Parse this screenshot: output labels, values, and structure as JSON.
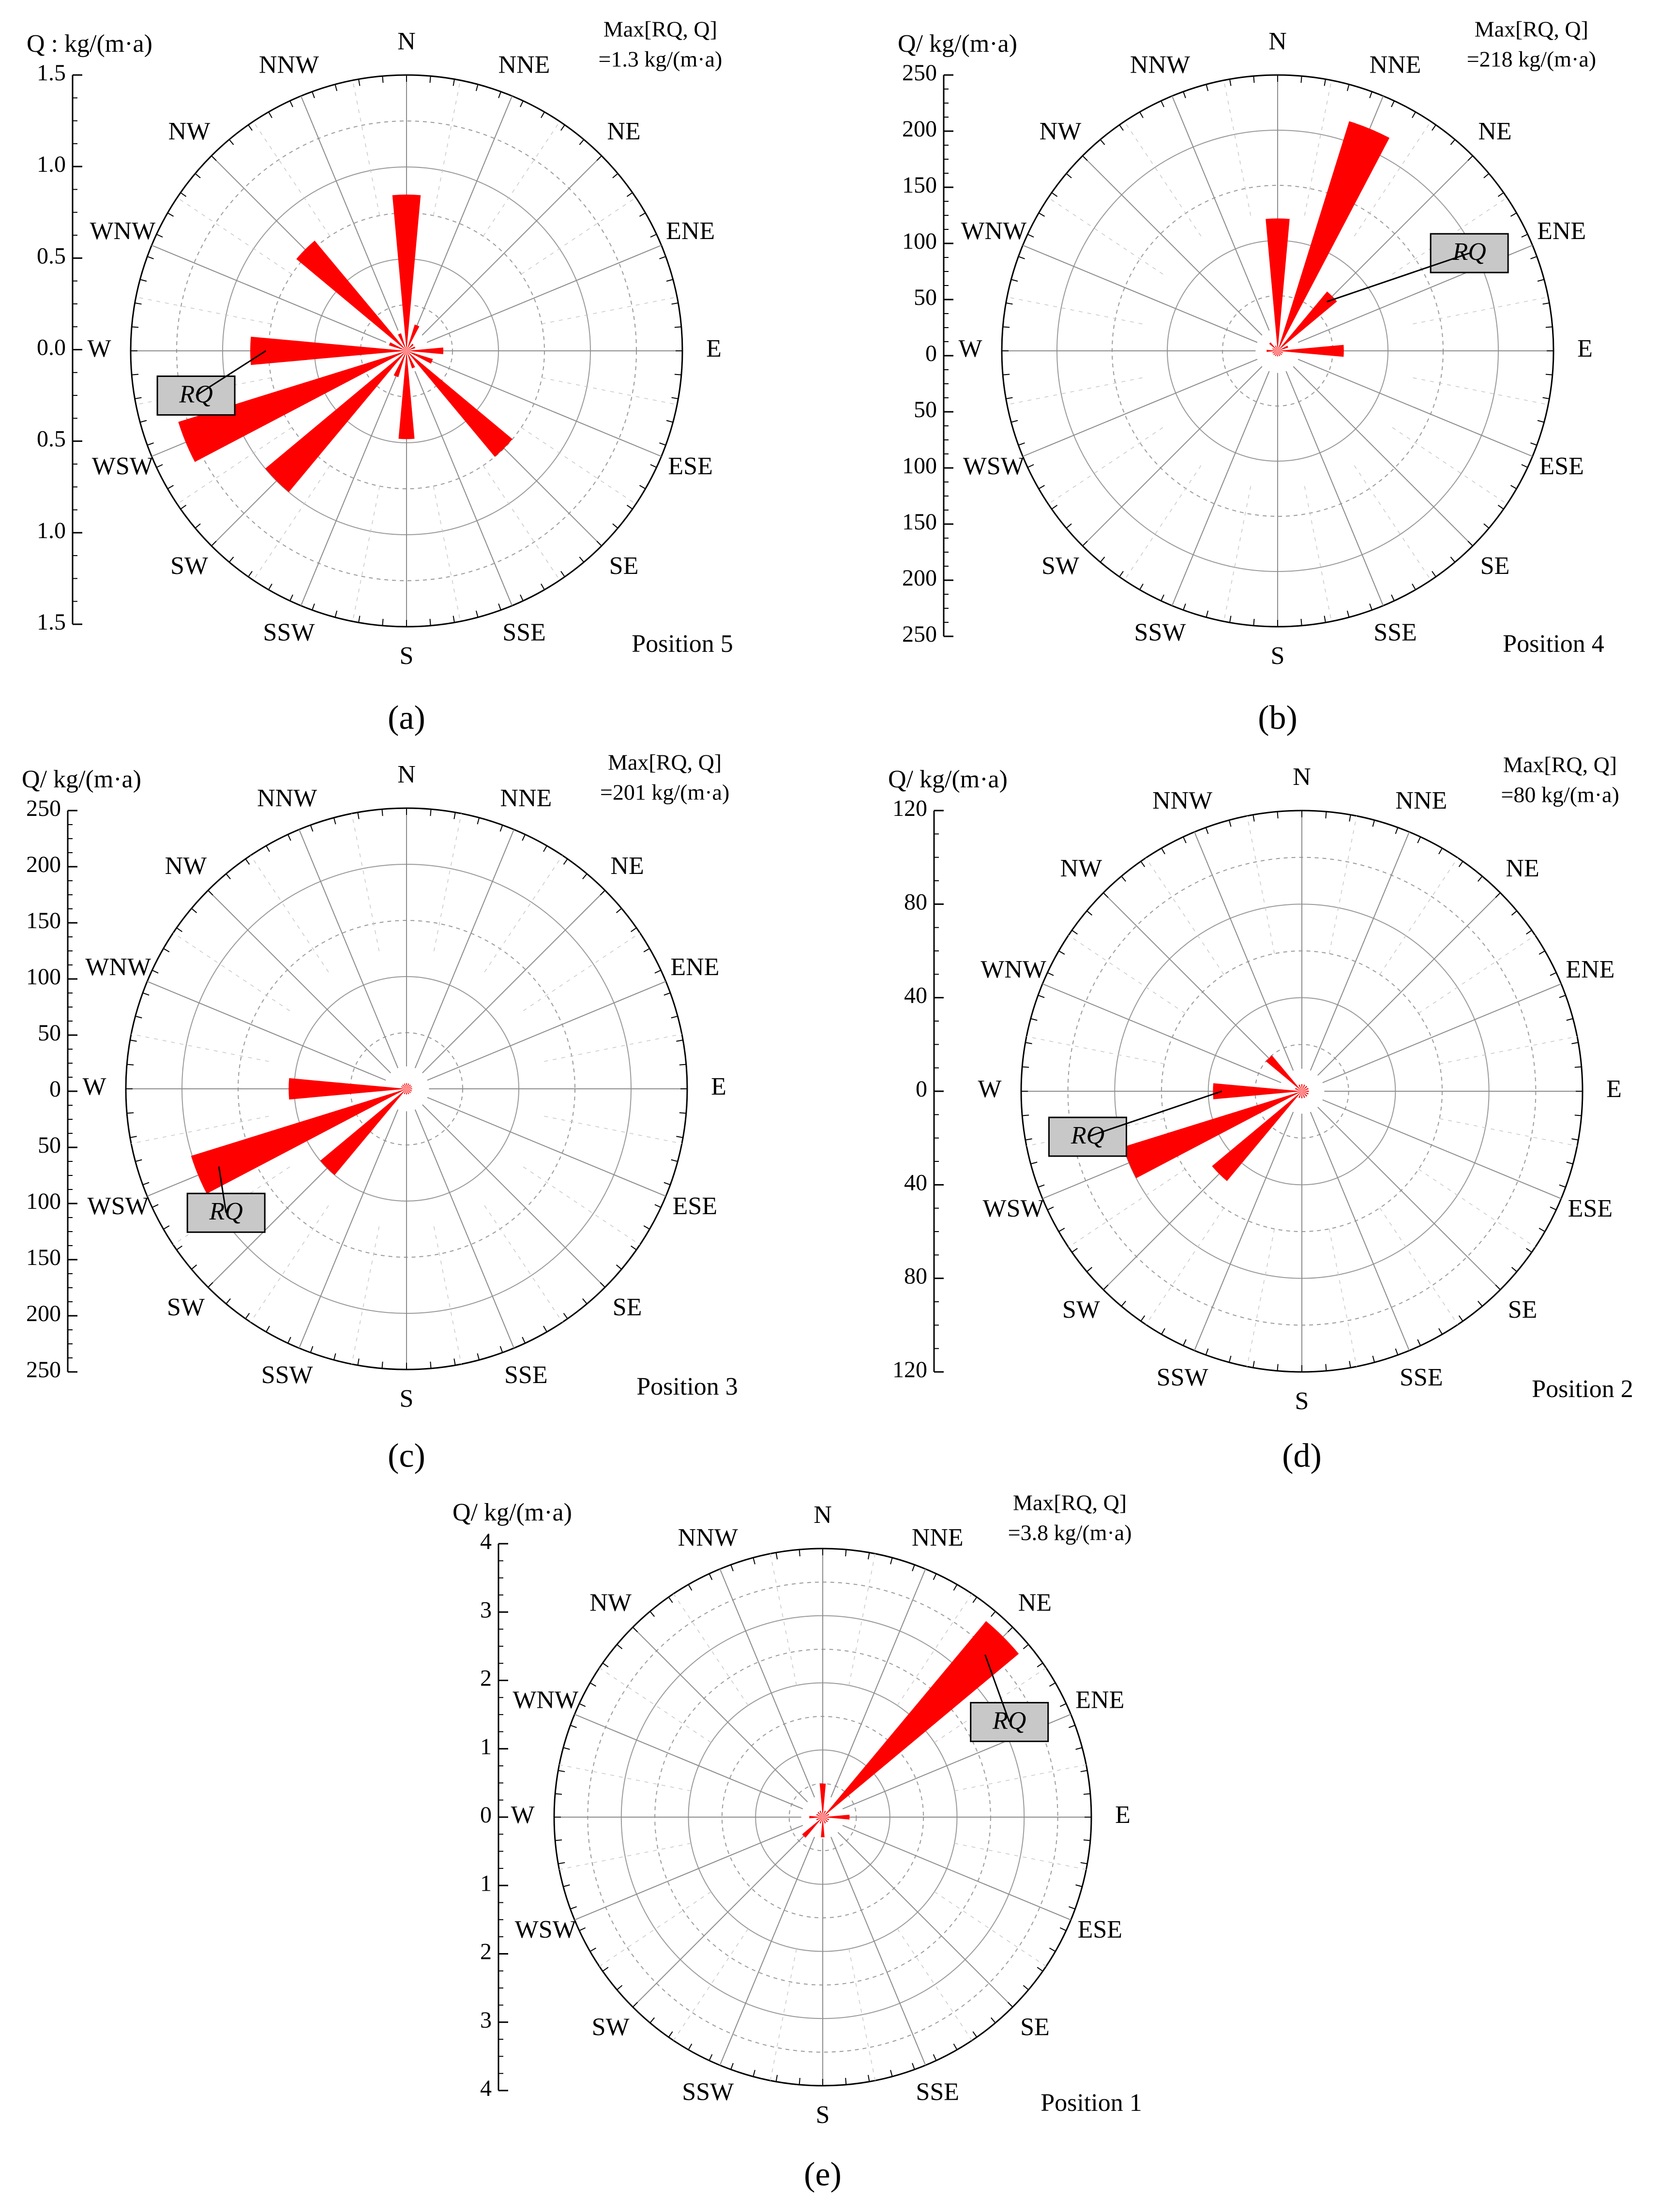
{
  "figure_labels": [
    "(a)",
    "(b)",
    "(c)",
    "(d)",
    "(e)"
  ],
  "chart_data": [
    {
      "type": "polar-bar",
      "panel_label": "(a)",
      "position_label": "Position 5",
      "q_axis_label": "Q : kg/(m·a)",
      "q_axis_ticks": [
        "1.5",
        "1.0",
        "0.5",
        "0.0",
        "0.5",
        "1.0",
        "1.5"
      ],
      "rmax": 1.5,
      "grid_rings": [
        0.25,
        0.5,
        0.75,
        1.0,
        1.25,
        1.5
      ],
      "direction_labels": [
        "N",
        "NNE",
        "NE",
        "ENE",
        "E",
        "ESE",
        "SE",
        "SSE",
        "S",
        "SSW",
        "SW",
        "WSW",
        "W",
        "WNW",
        "NW",
        "NNW"
      ],
      "max_label_line1": "Max[RQ, Q]",
      "max_label_line2": "=1.3 kg/(m·a)",
      "rq_label": "RQ",
      "rq_box": {
        "direction": "W"
      },
      "values": [
        0.85,
        0.15,
        0.05,
        0.05,
        0.2,
        0.15,
        0.75,
        0.1,
        0.48,
        0.15,
        1.0,
        1.3,
        0.85,
        0.1,
        0.78,
        0.1
      ],
      "color": "#ff0000"
    },
    {
      "type": "polar-bar",
      "panel_label": "(b)",
      "position_label": "Position 4",
      "q_axis_label": "Q/ kg/(m·a)",
      "q_axis_ticks": [
        "250",
        "200",
        "150",
        "100",
        "50",
        "0",
        "50",
        "100",
        "150",
        "200",
        "250"
      ],
      "rmax": 250,
      "grid_rings": [
        50,
        100,
        150,
        200,
        250
      ],
      "direction_labels": [
        "N",
        "NNE",
        "NE",
        "ENE",
        "E",
        "ESE",
        "SE",
        "SSE",
        "S",
        "SSW",
        "SW",
        "WSW",
        "W",
        "WNW",
        "NW",
        "NNW"
      ],
      "max_label_line1": "Max[RQ, Q]",
      "max_label_line2": "=218 kg/(m·a)",
      "rq_label": "RQ",
      "rq_box": {
        "direction": "NE"
      },
      "values": [
        120,
        218,
        70,
        10,
        60,
        5,
        5,
        5,
        5,
        5,
        5,
        5,
        10,
        5,
        10,
        5
      ],
      "color": "#ff0000"
    },
    {
      "type": "polar-bar",
      "panel_label": "(c)",
      "position_label": "Position 3",
      "q_axis_label": "Q/ kg/(m·a)",
      "q_axis_ticks": [
        "250",
        "200",
        "150",
        "100",
        "50",
        "0",
        "50",
        "100",
        "150",
        "200",
        "250"
      ],
      "rmax": 250,
      "grid_rings": [
        50,
        100,
        150,
        200,
        250
      ],
      "direction_labels": [
        "N",
        "NNE",
        "NE",
        "ENE",
        "E",
        "ESE",
        "SE",
        "SSE",
        "S",
        "SSW",
        "SW",
        "WSW",
        "W",
        "WNW",
        "NW",
        "NNW"
      ],
      "max_label_line1": "Max[RQ, Q]",
      "max_label_line2": "=201 kg/(m·a)",
      "rq_label": "RQ",
      "rq_box": {
        "direction": "WSW"
      },
      "values": [
        5,
        5,
        5,
        5,
        5,
        5,
        5,
        5,
        5,
        5,
        100,
        201,
        105,
        5,
        5,
        5
      ],
      "color": "#ff0000"
    },
    {
      "type": "polar-bar",
      "panel_label": "(d)",
      "position_label": "Position 2",
      "q_axis_label": "Q/ kg/(m·a)",
      "q_axis_ticks": [
        "120",
        "80",
        "40",
        "0",
        "40",
        "80",
        "120"
      ],
      "rmax": 120,
      "grid_rings": [
        20,
        40,
        60,
        80,
        100,
        120
      ],
      "direction_labels": [
        "N",
        "NNE",
        "NE",
        "ENE",
        "E",
        "ESE",
        "SE",
        "SSE",
        "S",
        "SSW",
        "SW",
        "WSW",
        "W",
        "WNW",
        "NW",
        "NNW"
      ],
      "max_label_line1": "Max[RQ, Q]",
      "max_label_line2": "=80 kg/(m·a)",
      "rq_label": "RQ",
      "rq_box": {
        "direction": "W"
      },
      "values": [
        3,
        3,
        3,
        3,
        3,
        3,
        3,
        3,
        3,
        3,
        50,
        80,
        38,
        3,
        20,
        3
      ],
      "color": "#ff0000"
    },
    {
      "type": "polar-bar",
      "panel_label": "(e)",
      "position_label": "Position 1",
      "q_axis_label": "Q/ kg/(m·a)",
      "q_axis_ticks": [
        "4",
        "3",
        "2",
        "1",
        "0",
        "1",
        "2",
        "3",
        "4"
      ],
      "rmax": 4,
      "grid_rings": [
        0.5,
        1,
        1.5,
        2,
        2.5,
        3,
        3.5,
        4
      ],
      "direction_labels": [
        "N",
        "NNE",
        "NE",
        "ENE",
        "E",
        "ESE",
        "SE",
        "SSE",
        "S",
        "SSW",
        "SW",
        "WSW",
        "W",
        "WNW",
        "NW",
        "NNW"
      ],
      "max_label_line1": "Max[RQ, Q]",
      "max_label_line2": "=3.8 kg/(m·a)",
      "rq_label": "RQ",
      "rq_box": {
        "direction": "NE"
      },
      "values": [
        0.5,
        0.1,
        3.8,
        0.1,
        0.4,
        0.1,
        0.1,
        0.1,
        0.3,
        0.1,
        0.4,
        0.1,
        0.2,
        0.1,
        0.1,
        0.1
      ],
      "color": "#ff0000"
    }
  ]
}
